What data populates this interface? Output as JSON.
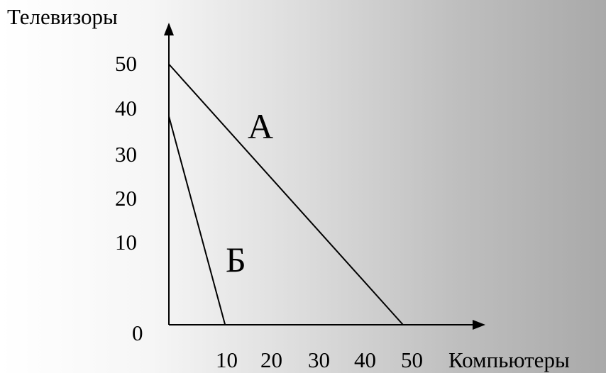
{
  "chart_data": {
    "type": "line",
    "title": "",
    "ylabel": "Телевизоры",
    "xlabel": "Компьютеры",
    "origin_label": "0",
    "xlim": [
      0,
      50
    ],
    "ylim": [
      0,
      50
    ],
    "x_ticks": [
      "10",
      "20",
      "30",
      "40",
      "50"
    ],
    "y_ticks": [
      "10",
      "20",
      "30",
      "40",
      "50"
    ],
    "grid": false,
    "series": [
      {
        "name": "А",
        "points": [
          [
            0,
            50
          ],
          [
            50,
            0
          ]
        ]
      },
      {
        "name": "Б",
        "points": [
          [
            0,
            40
          ],
          [
            12,
            0
          ]
        ]
      }
    ]
  }
}
